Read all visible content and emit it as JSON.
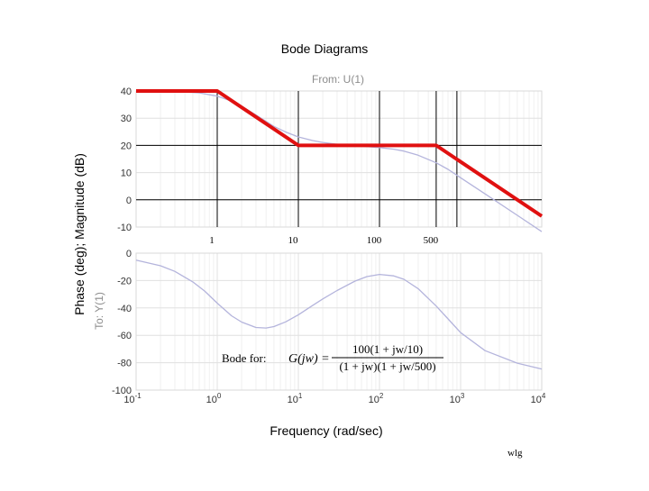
{
  "chart_data": {
    "type": "line",
    "title": "Bode Diagrams",
    "subtitle": "From: U(1)",
    "xlabel": "Frequency (rad/sec)",
    "ylabel": "Phase (deg); Magnitude (dB)",
    "ylabel_secondary": "To: Y(1)",
    "x_scale": "log",
    "xlim": [
      0.1,
      10000
    ],
    "x_tick_labels": [
      {
        "base": "10",
        "exp": "-1"
      },
      {
        "base": "10",
        "exp": "0"
      },
      {
        "base": "10",
        "exp": "1"
      },
      {
        "base": "10",
        "exp": "2"
      },
      {
        "base": "10",
        "exp": "3"
      },
      {
        "base": "10",
        "exp": "4"
      }
    ],
    "grid": true,
    "magnitude": {
      "ylim": [
        -10,
        40
      ],
      "yticks": [
        "40",
        "30",
        "20",
        "10",
        "0",
        "-10"
      ],
      "series": [
        {
          "role": "actual-magnitude",
          "color": "#b4b4dc",
          "x": [
            0.1,
            0.3,
            0.6,
            1,
            1.5,
            2,
            3,
            5,
            7,
            10,
            15,
            20,
            30,
            50,
            100,
            150,
            200,
            300,
            500,
            700,
            1000,
            2000,
            5000,
            10000
          ],
          "y": [
            40,
            39.9,
            39.3,
            38.1,
            36.3,
            34.4,
            31.2,
            27,
            24.9,
            23.1,
            21.8,
            21.1,
            20.4,
            19.9,
            19.2,
            18.6,
            17.9,
            16.4,
            13.6,
            11.2,
            8.1,
            2.2,
            -5.7,
            -11.7
          ]
        },
        {
          "role": "asymptote",
          "color": "#e01010",
          "x": [
            0.1,
            1,
            10,
            500,
            10000
          ],
          "y": [
            40,
            40,
            20,
            20,
            -6
          ]
        }
      ],
      "vertical_markers": [
        {
          "x": 1,
          "label": "1"
        },
        {
          "x": 10,
          "label": "10"
        },
        {
          "x": 100,
          "label": "100"
        },
        {
          "x": 500,
          "label": "500"
        },
        {
          "x": 900,
          "label": ""
        }
      ],
      "horizontal_markers": [
        20,
        0
      ]
    },
    "phase": {
      "ylim": [
        -100,
        0
      ],
      "yticks": [
        "0",
        "-20",
        "-40",
        "-60",
        "-80",
        "-100"
      ],
      "series": [
        {
          "role": "phase",
          "color": "#b4b4dc",
          "x": [
            0.1,
            0.2,
            0.3,
            0.5,
            0.7,
            1,
            1.5,
            2,
            3,
            4,
            5,
            7,
            10,
            15,
            20,
            30,
            50,
            70,
            100,
            150,
            200,
            300,
            500,
            700,
            1000,
            2000,
            5000,
            10000
          ],
          "y": [
            -5.1,
            -9.2,
            -13.3,
            -21,
            -27.7,
            -36.5,
            -45.7,
            -50.3,
            -54.3,
            -54.7,
            -53.6,
            -50.1,
            -45,
            -38.2,
            -33.4,
            -27.3,
            -20.4,
            -17.1,
            -15.5,
            -16.6,
            -19.1,
            -25.9,
            -38.6,
            -48,
            -58,
            -71.2,
            -80.3,
            -84.6
          ]
        }
      ]
    },
    "annotation": {
      "prefix": "Bode for:",
      "lhs": "G(jw) =",
      "numerator": "100(1 + jw/10)",
      "denominator": "(1 + jw)(1 + jw/500)"
    },
    "footer": "wlg"
  }
}
